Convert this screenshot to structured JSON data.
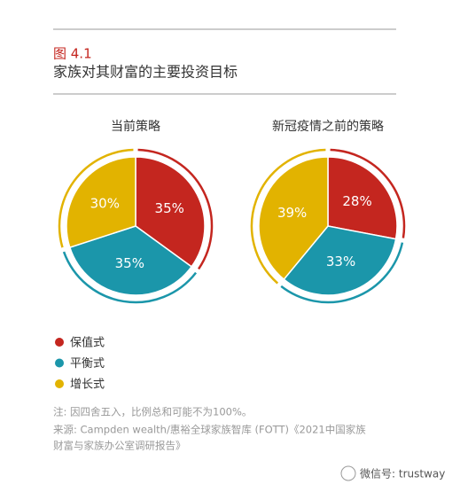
{
  "figure_label": "图 4.1",
  "title": "家族对其财富的主要投资目标",
  "chart_data": [
    {
      "type": "pie",
      "title": "当前策略",
      "categories": [
        "保值式",
        "平衡式",
        "增长式"
      ],
      "colors": [
        "#c4261f",
        "#1b96aa",
        "#e2b300"
      ],
      "values": [
        35,
        35,
        30
      ],
      "value_labels": [
        "35%",
        "35%",
        "30%"
      ]
    },
    {
      "type": "pie",
      "title": "新冠疫情之前的策略",
      "categories": [
        "保值式",
        "平衡式",
        "增长式"
      ],
      "colors": [
        "#c4261f",
        "#1b96aa",
        "#e2b300"
      ],
      "values": [
        28,
        33,
        39
      ],
      "value_labels": [
        "28%",
        "33%",
        "39%"
      ]
    }
  ],
  "note": "注: 因四舍五入，比例总和可能不为100%。",
  "source_lines": [
    "来源: Campden wealth/惠裕全球家族智库 (FOTT)《2021中国家族",
    "财富与家族办公室调研报告》"
  ],
  "watermark": "微信号: trustway"
}
